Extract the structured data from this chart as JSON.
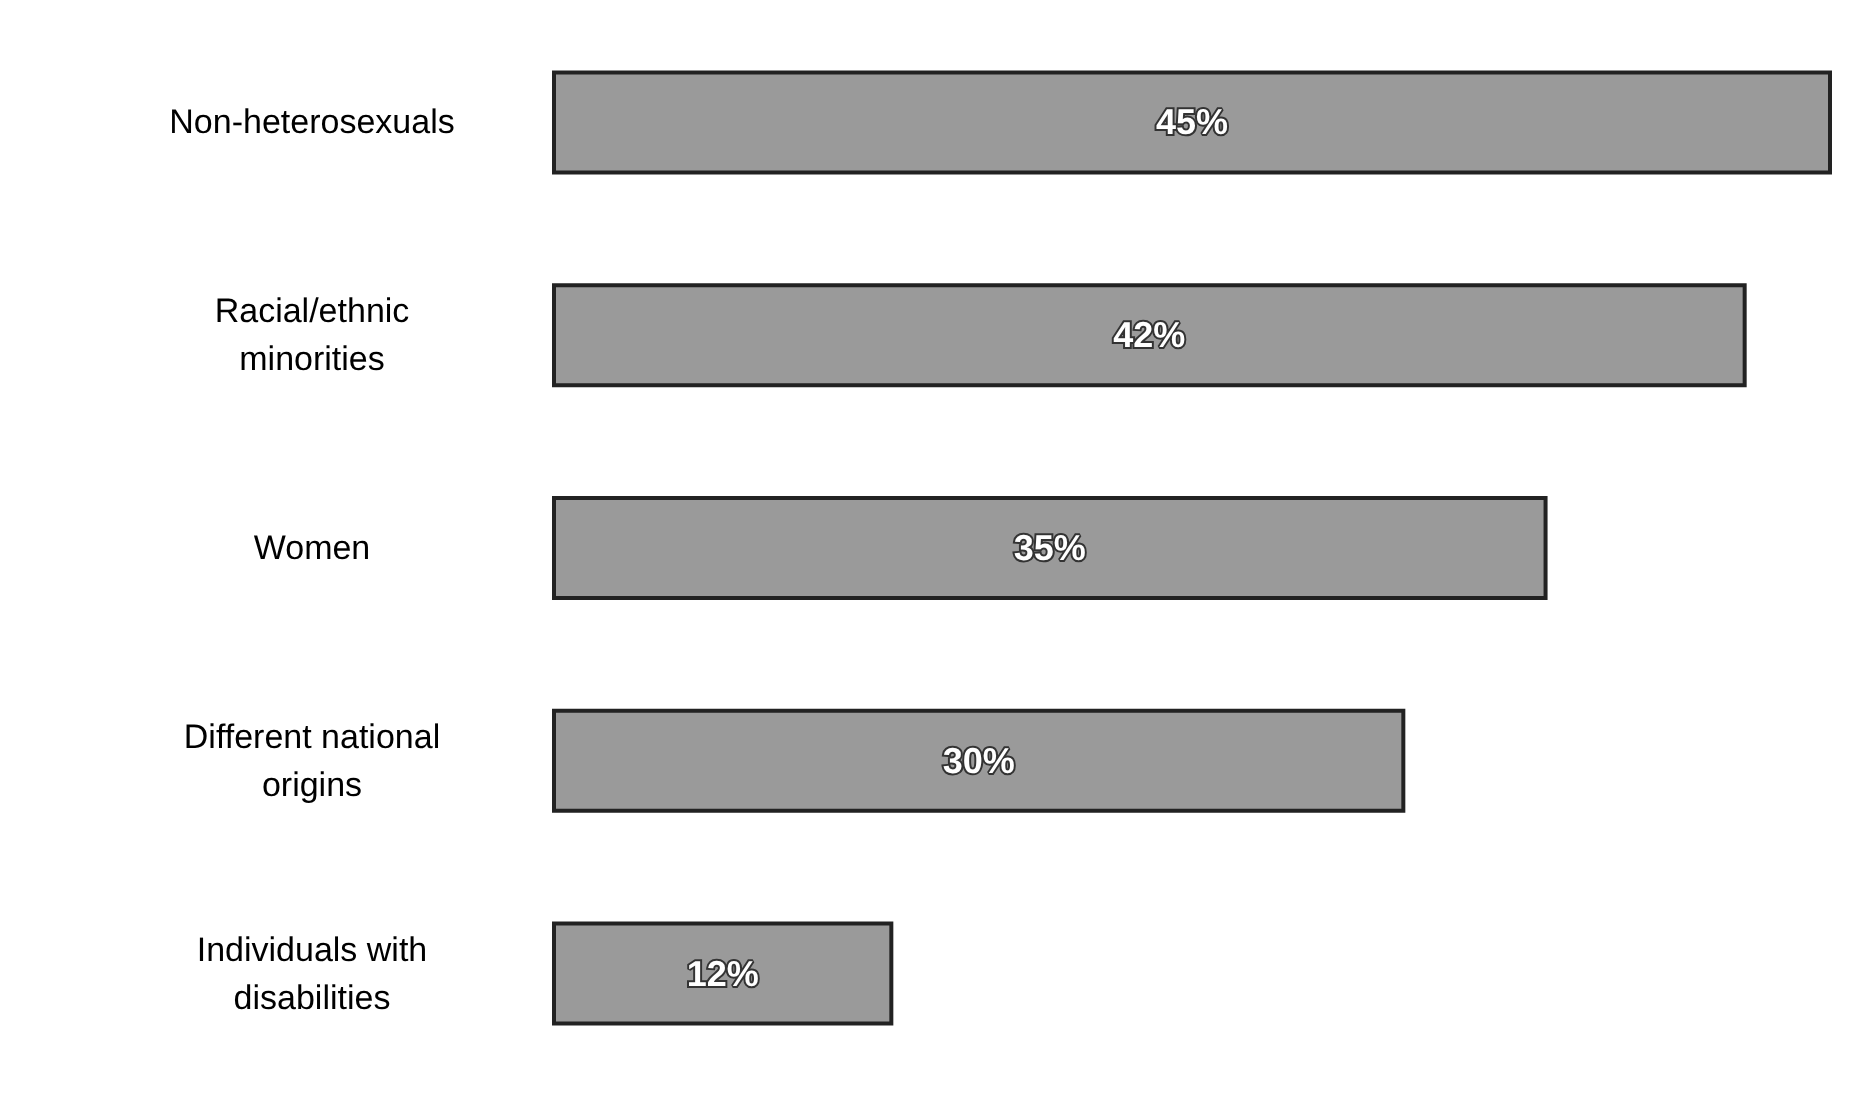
{
  "chart_data": {
    "type": "bar",
    "orientation": "horizontal",
    "categories": [
      "Non-heterosexuals",
      "Racial/ethnic\nminorities",
      "Women",
      "Different national\norigins",
      "Individuals with\ndisabilities"
    ],
    "values": [
      45,
      42,
      35,
      30,
      12
    ],
    "color": "#9a9a9a",
    "value_labels": [
      "45%",
      "42%",
      "35%",
      "30%",
      "12%"
    ]
  }
}
